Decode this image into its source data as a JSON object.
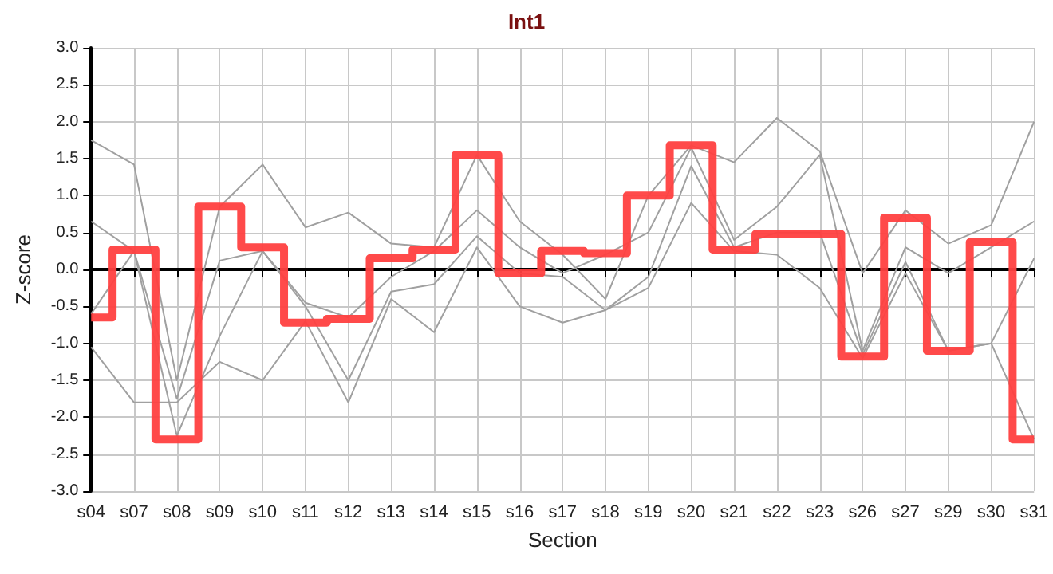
{
  "chart_data": {
    "type": "line",
    "title": "Int1",
    "xlabel": "Section",
    "ylabel": "Z-score",
    "categories": [
      "s04",
      "s07",
      "s08",
      "s09",
      "s10",
      "s11",
      "s12",
      "s13",
      "s14",
      "s15",
      "s16",
      "s17",
      "s18",
      "s19",
      "s20",
      "s21",
      "s22",
      "s23",
      "s26",
      "s27",
      "s29",
      "s30",
      "s31"
    ],
    "series": [
      {
        "color": "#a0a0a0",
        "values": [
          1.75,
          1.42,
          -1.5,
          0.85,
          1.42,
          0.57,
          0.77,
          0.35,
          0.3,
          1.55,
          0.65,
          0.2,
          -0.4,
          1.0,
          1.68,
          1.45,
          2.05,
          1.6,
          -0.05,
          0.8,
          0.35,
          0.6,
          2.0
        ]
      },
      {
        "color": "#a0a0a0",
        "values": [
          0.65,
          0.25,
          -1.75,
          0.12,
          0.25,
          -0.45,
          -0.65,
          -0.1,
          0.25,
          0.8,
          0.3,
          -0.05,
          0.2,
          0.5,
          1.65,
          0.4,
          0.85,
          1.55,
          -1.1,
          0.3,
          -0.05,
          0.3,
          0.65
        ]
      },
      {
        "color": "#a0a0a0",
        "values": [
          -0.6,
          0.25,
          -2.25,
          -0.9,
          0.25,
          -0.5,
          -1.5,
          -0.3,
          -0.2,
          0.45,
          -0.05,
          -0.1,
          -0.55,
          -0.1,
          1.4,
          0.3,
          0.5,
          0.5,
          -1.15,
          0.1,
          -1.1,
          -1.0,
          0.15
        ]
      },
      {
        "color": "#a0a0a0",
        "values": [
          -1.05,
          -1.8,
          -1.8,
          -1.25,
          -1.5,
          -0.7,
          -1.8,
          -0.4,
          -0.85,
          0.3,
          -0.5,
          -0.72,
          -0.55,
          -0.25,
          0.9,
          0.25,
          0.2,
          -0.25,
          -1.2,
          -0.05,
          -1.1,
          -1.0,
          -2.3
        ]
      },
      {
        "type": "step",
        "color": "#ff4040",
        "values": [
          -0.65,
          0.27,
          -2.3,
          0.85,
          0.3,
          -0.72,
          -0.67,
          0.15,
          0.27,
          1.55,
          -0.05,
          0.25,
          0.22,
          1.0,
          1.68,
          0.27,
          0.48,
          0.48,
          -1.18,
          0.7,
          -1.1,
          0.37,
          -2.3
        ]
      }
    ],
    "ylim": [
      -3,
      3
    ],
    "yticks": [
      {
        "value": -3,
        "label": "-3.0"
      },
      {
        "value": -2.5,
        "label": "-2.5"
      },
      {
        "value": -2,
        "label": "-2.0"
      },
      {
        "value": -1.5,
        "label": "-1.5"
      },
      {
        "value": -1,
        "label": "-1.0"
      },
      {
        "value": -0.5,
        "label": "-0.5"
      },
      {
        "value": 0,
        "label": "0.0"
      },
      {
        "value": 0.5,
        "label": "0.5"
      },
      {
        "value": 1,
        "label": "1.0"
      },
      {
        "value": 1.5,
        "label": "1.5"
      },
      {
        "value": 2,
        "label": "2.0"
      },
      {
        "value": 2.5,
        "label": "2.5"
      },
      {
        "value": 3,
        "label": "3.0"
      }
    ],
    "grid": true
  }
}
